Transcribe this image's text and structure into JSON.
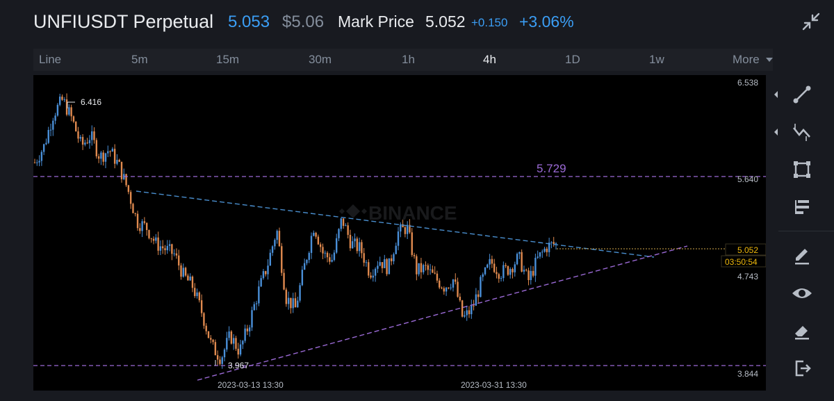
{
  "header": {
    "symbol": "UNFIUSDT Perpetual",
    "last_price": "5.053",
    "usd_price": "$5.06",
    "mark_price_label": "Mark Price",
    "mark_price_value": "5.052",
    "change_abs": "+0.150",
    "change_pct": "+3.06%"
  },
  "tabs": [
    {
      "label": "Line",
      "active": false
    },
    {
      "label": "5m",
      "active": false
    },
    {
      "label": "15m",
      "active": false
    },
    {
      "label": "30m",
      "active": false
    },
    {
      "label": "1h",
      "active": false
    },
    {
      "label": "4h",
      "active": true
    },
    {
      "label": "1D",
      "active": false
    },
    {
      "label": "1w",
      "active": false
    },
    {
      "label": "More",
      "active": false
    }
  ],
  "toolbar": [
    "trend-line-icon",
    "fib-tool-icon",
    "rectangle-tool-icon",
    "text-tool-icon",
    "pencil-icon",
    "eye-icon",
    "eraser-icon",
    "exit-icon"
  ],
  "colors": {
    "up": "#4a90d9",
    "down": "#e08a4f",
    "resistance": "#9b6ad6",
    "triangle_top": "#4a8fcf",
    "triangle_bottom": "#9b6ad6",
    "accent": "#3b9ef5"
  },
  "chart_data": {
    "type": "candlestick",
    "interval": "4h",
    "watermark": "BINANCE",
    "y_ticks": [
      "6.538",
      "5.640",
      "4.743",
      "3.844"
    ],
    "y_tick_values": [
      6.538,
      5.64,
      4.743,
      3.844
    ],
    "x_ticks": [
      "2023-03-13 13:30",
      "2023-03-31 13:30"
    ],
    "annotations": {
      "high": "6.416",
      "low": "3.967",
      "level_label": "5.729"
    },
    "current_price": "5.052",
    "countdown": "03:50:54",
    "horizontal_levels": [
      5.64,
      3.91
    ],
    "close_path": [
      5.8,
      5.95,
      6.25,
      6.38,
      6.2,
      5.95,
      6.05,
      5.85,
      5.92,
      5.78,
      5.55,
      5.25,
      5.2,
      5.05,
      5.0,
      4.95,
      4.75,
      4.65,
      4.4,
      4.1,
      3.99,
      4.2,
      4.05,
      4.3,
      4.6,
      4.85,
      5.18,
      4.55,
      4.45,
      4.85,
      5.22,
      4.95,
      4.9,
      5.28,
      5.05,
      5.0,
      4.78,
      4.9,
      4.82,
      5.15,
      5.2,
      4.8,
      4.82,
      4.73,
      4.65,
      4.72,
      4.35,
      4.45,
      4.7,
      4.88,
      4.78,
      4.82,
      4.92,
      4.7,
      4.9,
      5.02,
      5.053
    ],
    "candle_count": 229
  }
}
